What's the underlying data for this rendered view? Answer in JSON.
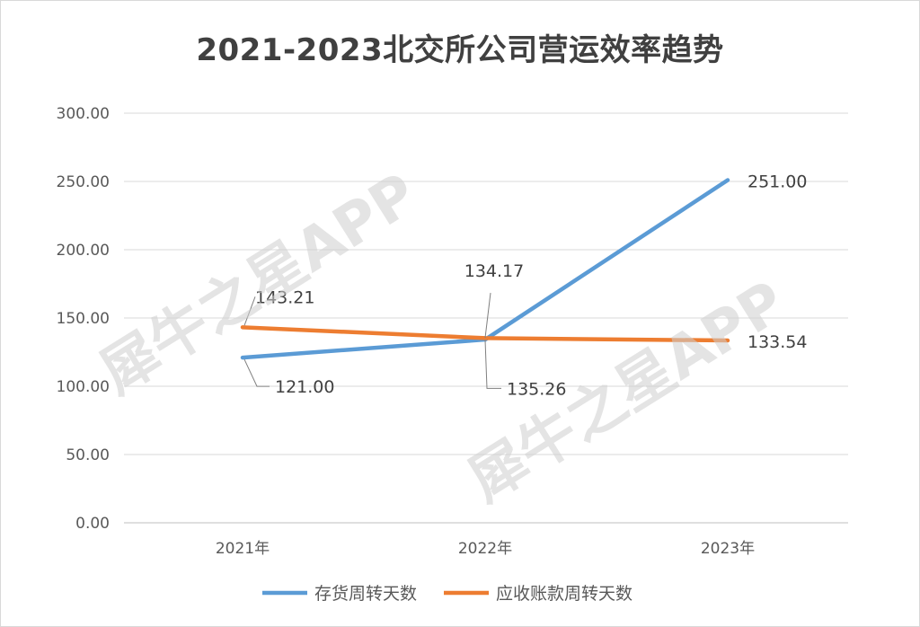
{
  "chart_data": {
    "type": "line",
    "title": "2021-2023北交所公司营运效率趋势",
    "categories": [
      "2021年",
      "2022年",
      "2023年"
    ],
    "series": [
      {
        "name": "存货周转天数",
        "values": [
          121.0,
          134.17,
          251.0
        ],
        "labels": [
          "121.00",
          "134.17",
          "251.00"
        ],
        "color": "#5b9bd5"
      },
      {
        "name": "应收账款周转天数",
        "values": [
          143.21,
          135.26,
          133.54
        ],
        "labels": [
          "143.21",
          "135.26",
          "133.54"
        ],
        "color": "#ed7d31"
      }
    ],
    "yticks": [
      "0.00",
      "50.00",
      "100.00",
      "150.00",
      "200.00",
      "250.00",
      "300.00"
    ],
    "ylim": [
      0,
      300
    ],
    "grid": true,
    "legend": "bottom"
  },
  "watermark": "犀牛之星APP"
}
